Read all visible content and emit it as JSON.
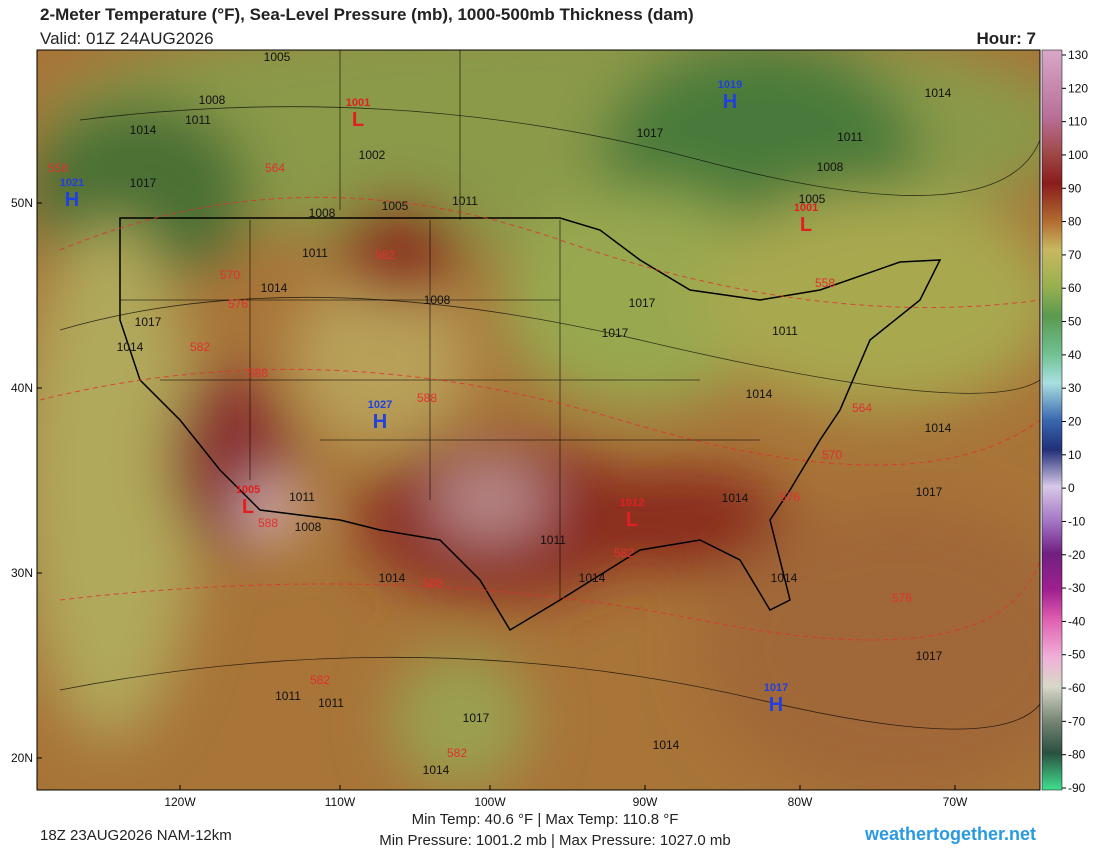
{
  "header": {
    "title": "2-Meter Temperature (°F), Sea-Level Pressure (mb), 1000-500mb Thickness (dam)",
    "valid": "Valid: 01Z 24AUG2026",
    "hour": "Hour: 7"
  },
  "map": {
    "lat_labels": [
      "50N",
      "40N",
      "30N",
      "20N"
    ],
    "lon_labels": [
      "120W",
      "110W",
      "100W",
      "90W",
      "80W",
      "70W"
    ],
    "colorbar_ticks": [
      130,
      120,
      110,
      100,
      90,
      80,
      70,
      60,
      50,
      40,
      30,
      20,
      10,
      0,
      -10,
      -20,
      -30,
      -40,
      -50,
      -60,
      -70,
      -80,
      -90
    ],
    "isobar_labels": [
      "1005",
      "1008",
      "1014",
      "1011",
      "1017",
      "1002",
      "1008",
      "1005",
      "1011",
      "1017",
      "1011",
      "1008",
      "1005",
      "1014",
      "1011",
      "1014",
      "1008",
      "1017",
      "1014",
      "1017",
      "1017",
      "1011",
      "1014",
      "1014",
      "1017",
      "1014",
      "1011",
      "1014",
      "1014",
      "1017",
      "1011",
      "1011",
      "1014",
      "1017",
      "1014",
      "1008",
      "1011",
      "1014"
    ],
    "thickness_labels": [
      "558",
      "564",
      "570",
      "576",
      "582",
      "582",
      "588",
      "588",
      "576",
      "570",
      "564",
      "558",
      "588",
      "588",
      "582",
      "582",
      "582",
      "576"
    ],
    "highs": [
      {
        "letter": "H",
        "value": "1019"
      },
      {
        "letter": "H",
        "value": "1021"
      },
      {
        "letter": "H",
        "value": "1027"
      },
      {
        "letter": "H",
        "value": "1017"
      }
    ],
    "lows": [
      {
        "letter": "L",
        "value": "1001"
      },
      {
        "letter": "L",
        "value": "1001"
      },
      {
        "letter": "L",
        "value": "1005"
      },
      {
        "letter": "L",
        "value": "1012"
      }
    ]
  },
  "footer": {
    "run": "18Z 23AUG2026 NAM-12km",
    "temps": "Min Temp: 40.6 °F | Max Temp: 110.8 °F",
    "pressures": "Min Pressure: 1001.2 mb | Max Pressure: 1027.0 mb",
    "site": "weathertogether.net"
  }
}
